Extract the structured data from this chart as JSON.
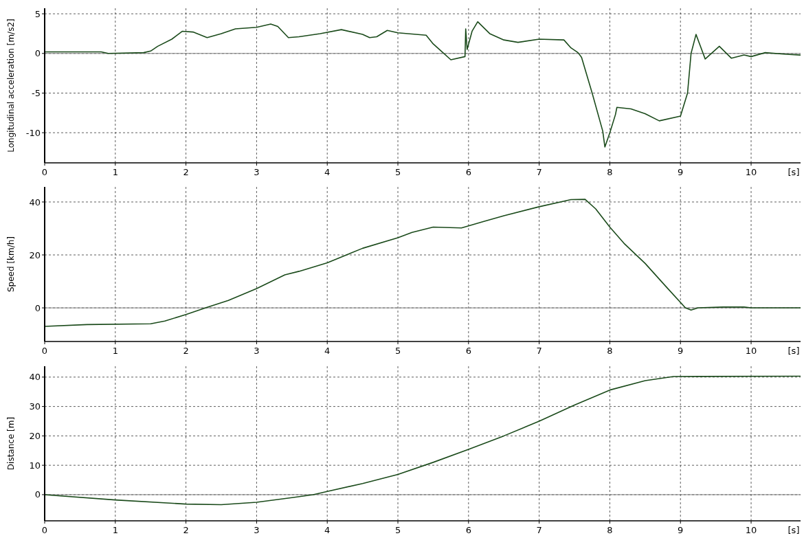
{
  "chart_data": [
    {
      "type": "line",
      "ylabel": "Longitudinal acceleration [m/s2]",
      "xlabel": "[s]",
      "xlim": [
        0,
        10.7
      ],
      "xticks": [
        0,
        1,
        2,
        3,
        4,
        5,
        6,
        7,
        8,
        9,
        10
      ],
      "ylim": [
        -13.8,
        5.7
      ],
      "yticks": [
        -10,
        -5,
        0,
        5
      ],
      "grid": true,
      "ref_lines": [
        {
          "axis": "y",
          "value": 0,
          "color": "#808080",
          "line_style": "solid"
        }
      ],
      "series": [
        {
          "color": "#1a4a1a",
          "x": [
            0,
            0.8,
            0.9,
            1.4,
            1.5,
            1.6,
            1.8,
            1.95,
            2.1,
            2.3,
            2.5,
            2.7,
            3.0,
            3.2,
            3.3,
            3.45,
            3.6,
            3.9,
            4.2,
            4.5,
            4.6,
            4.7,
            4.85,
            5.0,
            5.4,
            5.5,
            5.6,
            5.75,
            5.95,
            5.96,
            5.98,
            6.05,
            6.13,
            6.3,
            6.5,
            6.7,
            7.0,
            7.35,
            7.45,
            7.55,
            7.6,
            7.75,
            7.9,
            7.93,
            8.0,
            8.08,
            8.1,
            8.3,
            8.5,
            8.7,
            9.0,
            9.1,
            9.15,
            9.22,
            9.35,
            9.55,
            9.72,
            9.9,
            10.0,
            10.2,
            10.5,
            10.7
          ],
          "values": [
            0.2,
            0.2,
            0,
            0.1,
            0.3,
            0.9,
            1.8,
            2.8,
            2.7,
            2.0,
            2.5,
            3.1,
            3.3,
            3.7,
            3.4,
            2.0,
            2.1,
            2.5,
            3.0,
            2.4,
            2.0,
            2.1,
            2.9,
            2.6,
            2.3,
            1.2,
            0.4,
            -0.8,
            -0.4,
            3.1,
            0.5,
            2.8,
            4.0,
            2.5,
            1.7,
            1.4,
            1.8,
            1.7,
            0.7,
            0.1,
            -0.5,
            -5,
            -9.8,
            -11.8,
            -10,
            -7.7,
            -6.8,
            -7.0,
            -7.6,
            -8.5,
            -7.9,
            -5,
            0,
            2.4,
            -0.7,
            0.9,
            -0.6,
            -0.2,
            -0.4,
            0.1,
            -0.1,
            -0.2
          ]
        }
      ]
    },
    {
      "type": "line",
      "ylabel": "Speed [km/h]",
      "xlabel": "[s]",
      "xlim": [
        0,
        10.7
      ],
      "xticks": [
        0,
        1,
        2,
        3,
        4,
        5,
        6,
        7,
        8,
        9,
        10
      ],
      "ylim": [
        -12.7,
        45.7
      ],
      "yticks": [
        0,
        20,
        40
      ],
      "grid": true,
      "ref_lines": [
        {
          "axis": "y",
          "value": 0,
          "color": "#808080",
          "line_style": "solid"
        }
      ],
      "series": [
        {
          "color": "#1a4a1a",
          "x": [
            0,
            0.6,
            1.5,
            1.7,
            2.0,
            2.3,
            2.6,
            3.0,
            3.4,
            3.6,
            4.0,
            4.5,
            5.0,
            5.2,
            5.5,
            5.9,
            6.2,
            6.5,
            7.0,
            7.45,
            7.65,
            7.8,
            8.0,
            8.2,
            8.5,
            8.8,
            9.07,
            9.15,
            9.25,
            9.6,
            9.9,
            10.0,
            10.7
          ],
          "values": [
            -7,
            -6.3,
            -6,
            -5,
            -2.5,
            0.2,
            2.8,
            7.3,
            12.5,
            13.8,
            17,
            22.5,
            26.5,
            28.5,
            30.5,
            30.2,
            32.5,
            34.8,
            38.2,
            40.9,
            41,
            37.4,
            30.5,
            24.4,
            16.8,
            7.9,
            0,
            -0.8,
            0,
            0.3,
            0.3,
            0,
            0
          ]
        }
      ]
    },
    {
      "type": "line",
      "ylabel": "Distance [m]",
      "xlabel": "[s]",
      "xlim": [
        0,
        10.7
      ],
      "xticks": [
        0,
        1,
        2,
        3,
        4,
        5,
        6,
        7,
        8,
        9,
        10
      ],
      "ylim": [
        -8.9,
        43.7
      ],
      "yticks": [
        0,
        10,
        20,
        30,
        40
      ],
      "grid": true,
      "ref_lines": [
        {
          "axis": "y",
          "value": 0,
          "color": "#808080",
          "line_style": "solid"
        }
      ],
      "series": [
        {
          "color": "#1a4a1a",
          "x": [
            0,
            1,
            2,
            2.5,
            3,
            3.5,
            3.8,
            4,
            4.5,
            5,
            5.5,
            6,
            6.5,
            7,
            7.5,
            8,
            8.5,
            8.9,
            10.7
          ],
          "values": [
            0,
            -1.8,
            -3.2,
            -3.4,
            -2.6,
            -1,
            0,
            1.1,
            3.8,
            6.9,
            11,
            15.4,
            20,
            25,
            30.5,
            35.6,
            38.8,
            40.2,
            40.3
          ]
        }
      ]
    }
  ]
}
